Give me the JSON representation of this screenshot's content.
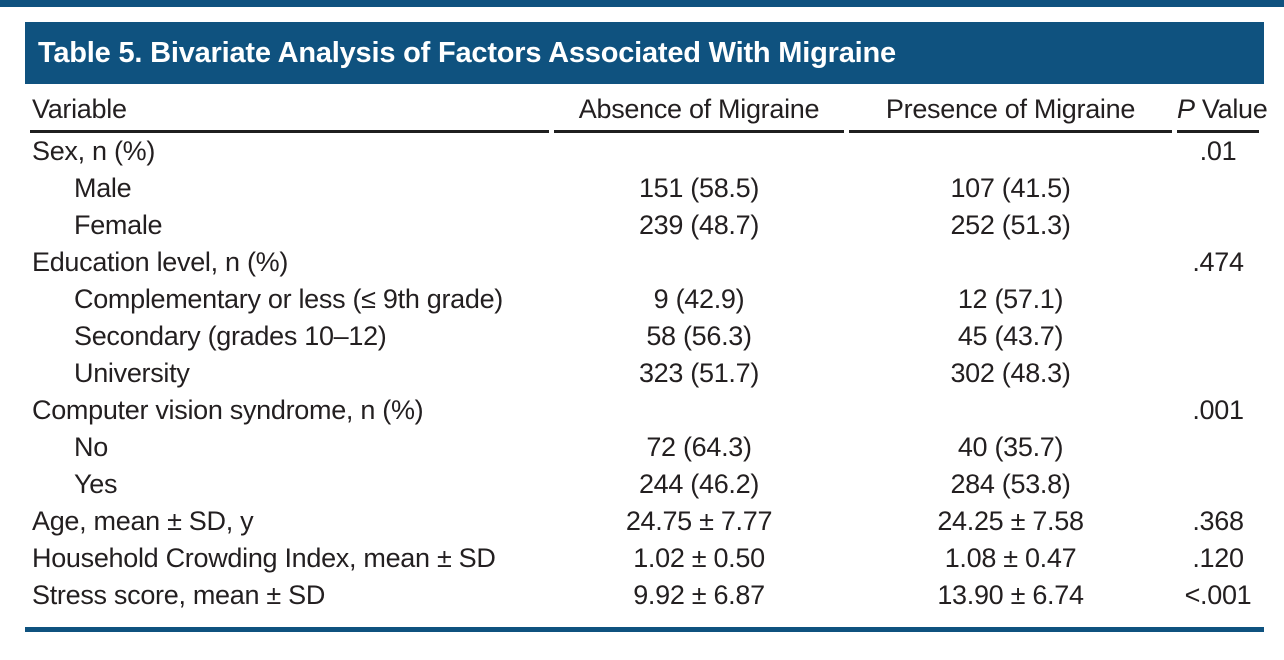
{
  "table": {
    "title": "Table 5. Bivariate Analysis of Factors Associated With Migraine",
    "columns": {
      "variable": "Variable",
      "absence": "Absence of Migraine",
      "presence": "Presence of Migraine",
      "p_italic": "P",
      "p_rest": " Value"
    },
    "rows": [
      {
        "label": "Sex, n (%)",
        "indent": 0,
        "absence": "",
        "presence": "",
        "p": ".01"
      },
      {
        "label": "Male",
        "indent": 1,
        "absence": "151 (58.5)",
        "presence": "107 (41.5)",
        "p": ""
      },
      {
        "label": "Female",
        "indent": 1,
        "absence": "239 (48.7)",
        "presence": "252 (51.3)",
        "p": ""
      },
      {
        "label": "Education level, n (%)",
        "indent": 0,
        "absence": "",
        "presence": "",
        "p": ".474"
      },
      {
        "label": "Complementary or less (≤ 9th grade)",
        "indent": 1,
        "absence": "9 (42.9)",
        "presence": "12 (57.1)",
        "p": ""
      },
      {
        "label": "Secondary (grades 10–12)",
        "indent": 1,
        "absence": "58 (56.3)",
        "presence": "45 (43.7)",
        "p": ""
      },
      {
        "label": "University",
        "indent": 1,
        "absence": "323 (51.7)",
        "presence": "302 (48.3)",
        "p": ""
      },
      {
        "label": "Computer vision syndrome, n (%)",
        "indent": 0,
        "absence": "",
        "presence": "",
        "p": ".001"
      },
      {
        "label": "No",
        "indent": 1,
        "absence": "72 (64.3)",
        "presence": "40 (35.7)",
        "p": ""
      },
      {
        "label": "Yes",
        "indent": 1,
        "absence": "244 (46.2)",
        "presence": "284 (53.8)",
        "p": ""
      },
      {
        "label": "Age, mean ± SD, y",
        "indent": 0,
        "absence": "24.75 ± 7.77",
        "presence": "24.25 ± 7.58",
        "p": ".368"
      },
      {
        "label": "Household Crowding Index, mean ± SD",
        "indent": 0,
        "absence": "1.02 ± 0.50",
        "presence": "1.08 ± 0.47",
        "p": ".120"
      },
      {
        "label": "Stress score, mean ± SD",
        "indent": 0,
        "absence": "9.92 ± 6.87",
        "presence": "13.90 ± 6.74",
        "p": "<.001"
      }
    ]
  },
  "colors": {
    "banner_blue": "#0f527f",
    "rule_black": "#1f1f1f",
    "text": "#231f20",
    "background": "#ffffff"
  }
}
